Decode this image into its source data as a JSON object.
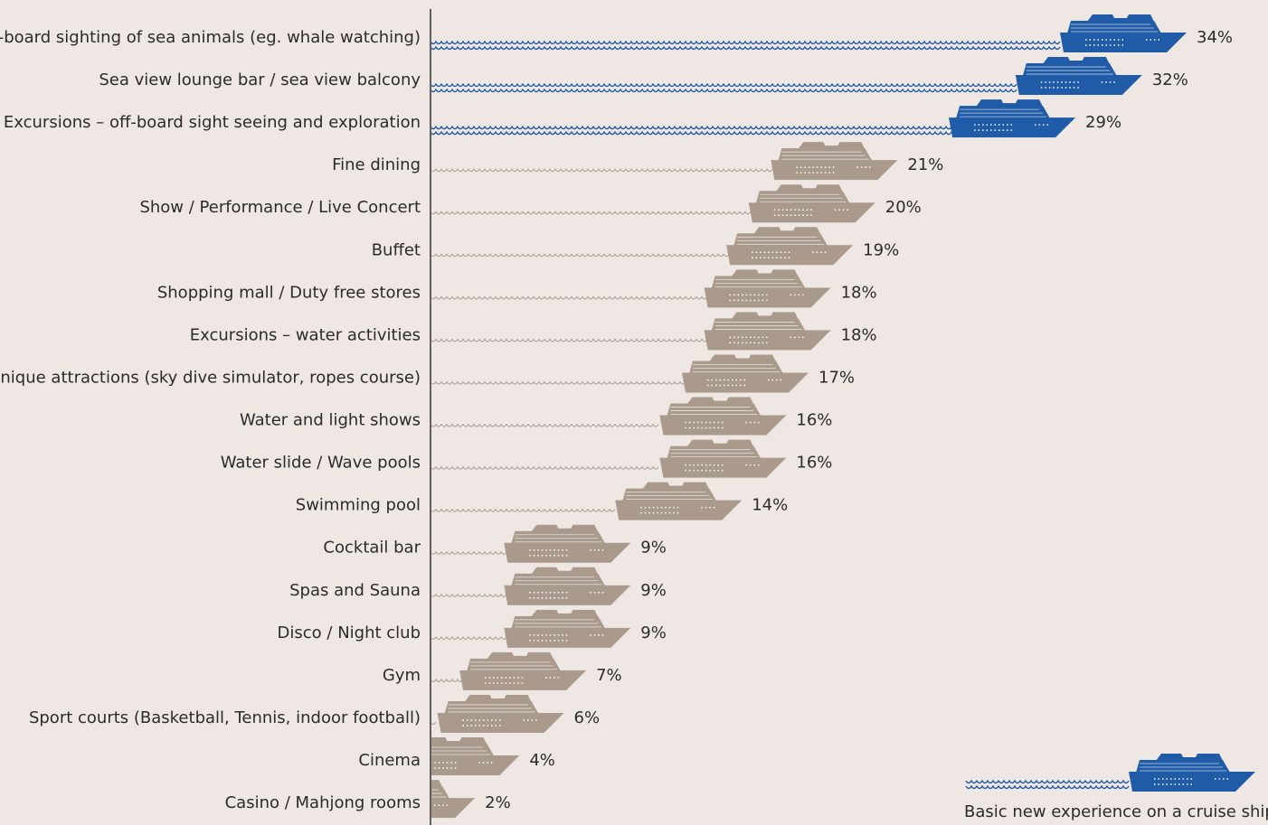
{
  "chart_data": {
    "type": "bar",
    "orientation": "horizontal",
    "categories": [
      "On-board sighting of sea animals (eg. whale watching)",
      "Sea view lounge bar / sea view balcony",
      "Excursions – off-board sight seeing and exploration",
      "Fine dining",
      "Show / Performance / Live Concert",
      "Buffet",
      "Shopping mall / Duty free stores",
      "Excursions – water activities",
      "Unique attractions (sky dive simulator, ropes course)",
      "Water and light shows",
      "Water slide / Wave pools",
      "Swimming pool",
      "Cocktail bar",
      "Spas and Sauna",
      "Disco / Night club",
      "Gym",
      "Sport courts (Basketball, Tennis, indoor football)",
      "Cinema",
      "Casino / Mahjong rooms"
    ],
    "values": [
      34,
      32,
      29,
      21,
      20,
      19,
      18,
      18,
      17,
      16,
      16,
      14,
      9,
      9,
      9,
      7,
      6,
      4,
      2
    ],
    "value_labels": [
      "34%",
      "32%",
      "29%",
      "21%",
      "20%",
      "19%",
      "18%",
      "18%",
      "17%",
      "16%",
      "16%",
      "14%",
      "9%",
      "9%",
      "9%",
      "7%",
      "6%",
      "4%",
      "2%"
    ],
    "colors": [
      "#1f5ba6",
      "#1f5ba6",
      "#1f5ba6",
      "#a99a8b",
      "#a99a8b",
      "#a99a8b",
      "#a99a8b",
      "#a99a8b",
      "#a99a8b",
      "#a99a8b",
      "#a99a8b",
      "#a99a8b",
      "#a99a8b",
      "#a99a8b",
      "#a99a8b",
      "#a99a8b",
      "#a99a8b",
      "#a99a8b",
      "#a99a8b"
    ],
    "xlim": [
      0,
      34
    ],
    "legend": {
      "label": "Basic new experience on a cruise ship",
      "color": "#1f5ba6",
      "position": "bottom-right"
    }
  }
}
